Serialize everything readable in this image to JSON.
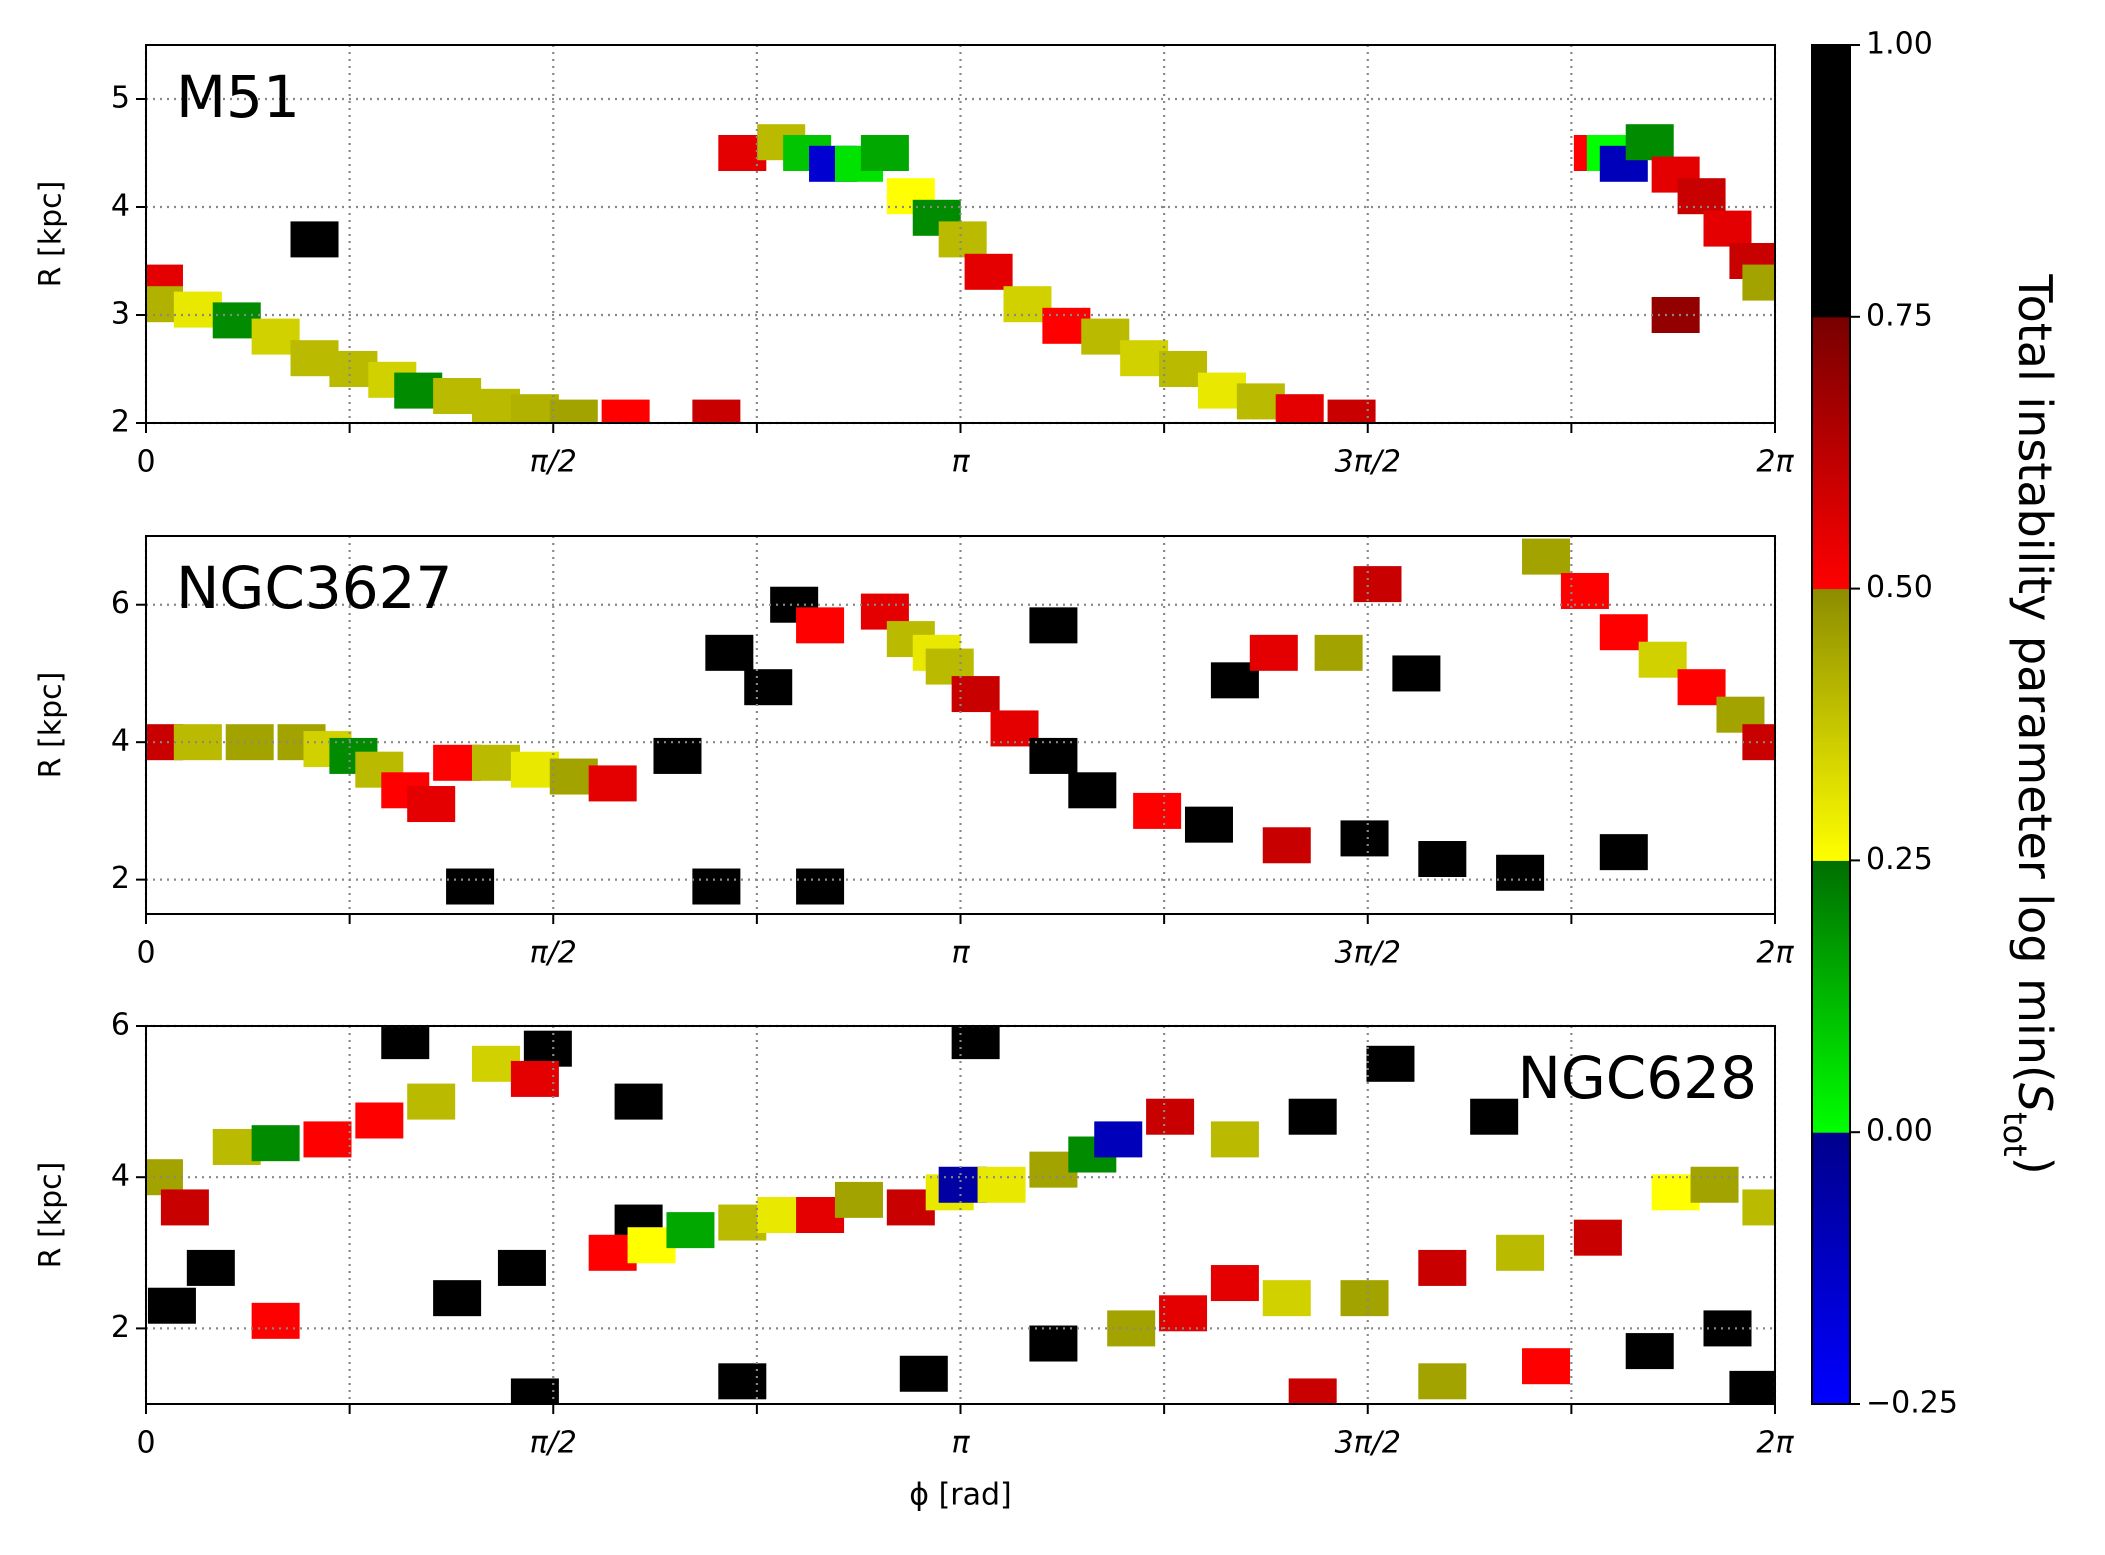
{
  "chart_data": [
    {
      "type": "heatmap",
      "title": "M51",
      "label_corner": "upper left",
      "ylabel": "R [kpc]",
      "xlim": [
        0,
        6.2832
      ],
      "ylim": [
        2,
        5.5
      ],
      "yticks": [
        2,
        3,
        4,
        5
      ],
      "xticks": [
        0,
        {
          "value": 1.5708,
          "label": "π/2"
        },
        {
          "value": 3.1416,
          "label": "π"
        },
        {
          "value": 4.7124,
          "label": "3π/2"
        },
        {
          "value": 6.2832,
          "label": "2π"
        }
      ],
      "xminor": [
        0.7854,
        2.3562,
        3.927,
        5.4978
      ],
      "grid": true,
      "points": {
        "x": [
          0.05,
          0.05,
          0.2,
          0.35,
          0.5,
          0.65,
          0.8,
          0.95,
          1.05,
          1.2,
          1.35,
          1.5,
          1.65,
          1.85,
          2.2,
          2.3,
          2.45,
          2.55,
          2.65,
          2.75,
          2.85,
          2.95,
          3.05,
          3.15,
          3.25,
          3.4,
          3.55,
          3.7,
          3.85,
          4.0,
          4.15,
          4.3,
          4.45,
          4.65,
          5.6,
          5.65,
          5.7,
          5.8,
          5.9,
          6.0,
          6.1,
          6.2,
          6.25,
          5.9,
          0.65
        ],
        "y": [
          3.3,
          3.1,
          3.05,
          2.95,
          2.8,
          2.6,
          2.5,
          2.4,
          2.3,
          2.25,
          2.15,
          2.1,
          2.05,
          2.05,
          2.05,
          4.5,
          4.6,
          4.5,
          4.4,
          4.4,
          4.5,
          4.1,
          3.9,
          3.7,
          3.4,
          3.1,
          2.9,
          2.8,
          2.6,
          2.5,
          2.3,
          2.2,
          2.1,
          2.05,
          4.5,
          4.5,
          4.4,
          4.6,
          4.3,
          4.1,
          3.8,
          3.5,
          3.3,
          3.0,
          3.7
        ],
        "values": [
          0.55,
          0.42,
          0.3,
          0.2,
          0.35,
          0.4,
          0.4,
          0.35,
          0.2,
          0.4,
          0.4,
          0.42,
          0.45,
          0.5,
          0.6,
          0.55,
          0.4,
          0.1,
          -0.15,
          0.05,
          0.15,
          0.25,
          0.2,
          0.4,
          0.55,
          0.35,
          0.5,
          0.4,
          0.35,
          0.4,
          0.3,
          0.4,
          0.55,
          0.6,
          0.5,
          0.0,
          -0.1,
          0.2,
          0.55,
          0.6,
          0.55,
          0.6,
          0.45,
          0.7,
          0.85
        ]
      }
    },
    {
      "type": "heatmap",
      "title": "NGC3627",
      "label_corner": "upper left",
      "ylabel": "R [kpc]",
      "xlim": [
        0,
        6.2832
      ],
      "ylim": [
        1.5,
        7
      ],
      "yticks": [
        2,
        4,
        6
      ],
      "xticks": [
        0,
        {
          "value": 1.5708,
          "label": "π/2"
        },
        {
          "value": 3.1416,
          "label": "π"
        },
        {
          "value": 4.7124,
          "label": "3π/2"
        },
        {
          "value": 6.2832,
          "label": "2π"
        }
      ],
      "xminor": [
        0.7854,
        2.3562,
        3.927,
        5.4978
      ],
      "grid": true,
      "points": {
        "x": [
          2.25,
          2.5,
          2.4,
          3.65,
          4.1,
          4.7,
          5.0,
          5.3,
          5.7,
          4.9,
          4.2,
          3.5,
          2.2,
          2.6,
          1.25,
          2.05,
          0.05,
          0.2,
          0.4,
          0.6,
          0.7,
          0.8,
          0.9,
          1.0,
          1.1,
          1.2,
          1.35,
          1.5,
          1.65,
          1.8,
          2.6,
          2.85,
          2.95,
          3.05,
          3.1,
          3.2,
          3.35,
          3.5,
          3.9,
          4.4,
          4.35,
          4.6,
          4.75,
          5.4,
          5.55,
          5.7,
          5.85,
          6.0,
          6.15,
          6.25
        ],
        "y": [
          5.3,
          6.0,
          4.8,
          3.3,
          2.8,
          2.6,
          2.3,
          2.1,
          2.4,
          5.0,
          4.9,
          5.7,
          1.9,
          1.9,
          1.9,
          3.8,
          4.0,
          4.0,
          4.0,
          4.0,
          3.9,
          3.8,
          3.6,
          3.3,
          3.1,
          3.7,
          3.7,
          3.6,
          3.5,
          3.4,
          5.7,
          5.9,
          5.5,
          5.3,
          5.1,
          4.7,
          4.2,
          3.8,
          3.0,
          2.5,
          5.3,
          5.3,
          6.3,
          6.7,
          6.2,
          5.6,
          5.2,
          4.8,
          4.4,
          4.0
        ],
        "values": [
          0.9,
          0.9,
          0.85,
          0.85,
          0.85,
          0.85,
          0.9,
          0.9,
          0.9,
          0.9,
          0.85,
          0.85,
          0.85,
          0.9,
          0.85,
          0.85,
          0.6,
          0.4,
          0.45,
          0.45,
          0.35,
          0.2,
          0.4,
          0.5,
          0.55,
          0.5,
          0.4,
          0.3,
          0.45,
          0.55,
          0.5,
          0.55,
          0.4,
          0.3,
          0.4,
          0.6,
          0.55,
          0.75,
          0.5,
          0.6,
          0.55,
          0.45,
          0.6,
          0.45,
          0.5,
          0.5,
          0.35,
          0.5,
          0.45,
          0.6
        ]
      }
    },
    {
      "type": "heatmap",
      "title": "NGC628",
      "label_corner": "upper right",
      "ylabel": "R [kpc]",
      "xlabel": "ϕ [rad]",
      "xlim": [
        0,
        6.2832
      ],
      "ylim": [
        1,
        6
      ],
      "yticks": [
        2,
        4,
        6
      ],
      "xticks": [
        0,
        {
          "value": 1.5708,
          "label": "π/2"
        },
        {
          "value": 3.1416,
          "label": "π"
        },
        {
          "value": 4.7124,
          "label": "3π/2"
        },
        {
          "value": 6.2832,
          "label": "2π"
        }
      ],
      "xminor": [
        0.7854,
        2.3562,
        3.927,
        5.4978
      ],
      "grid": true,
      "points": {
        "x": [
          1.55,
          1.9,
          1.9,
          0.1,
          0.25,
          1.2,
          1.45,
          4.8,
          5.2,
          1.5,
          2.3,
          3.0,
          3.5,
          5.8,
          6.1,
          6.2,
          1.0,
          3.2,
          4.5,
          0.05,
          0.15,
          0.35,
          0.5,
          0.7,
          0.9,
          1.1,
          1.35,
          1.5,
          1.8,
          0.5,
          1.95,
          2.1,
          2.3,
          2.45,
          2.6,
          2.75,
          2.95,
          3.1,
          3.15,
          3.3,
          3.5,
          3.65,
          3.75,
          3.95,
          4.2,
          3.8,
          4.0,
          4.2,
          4.4,
          4.7,
          5.0,
          5.3,
          5.6,
          5.9,
          6.05,
          6.25,
          4.5,
          5.0,
          5.4
        ],
        "y": [
          5.7,
          5.0,
          3.4,
          2.3,
          2.8,
          2.4,
          2.8,
          5.5,
          4.8,
          1.1,
          1.3,
          1.4,
          1.8,
          1.7,
          2.0,
          1.2,
          5.8,
          5.8,
          4.8,
          4.0,
          3.6,
          4.4,
          4.45,
          4.5,
          4.75,
          5.0,
          5.5,
          5.3,
          3.0,
          2.1,
          3.1,
          3.3,
          3.4,
          3.5,
          3.5,
          3.7,
          3.6,
          3.8,
          3.9,
          3.9,
          4.1,
          4.3,
          4.5,
          4.8,
          4.5,
          2.0,
          2.2,
          2.6,
          2.4,
          2.4,
          2.8,
          3.0,
          3.2,
          3.8,
          3.9,
          3.6,
          1.1,
          1.3,
          1.5
        ],
        "values": [
          0.9,
          0.9,
          0.85,
          0.9,
          0.9,
          0.9,
          0.85,
          0.9,
          0.9,
          0.9,
          0.9,
          0.9,
          0.9,
          0.9,
          0.9,
          0.9,
          0.9,
          0.9,
          0.8,
          0.45,
          0.6,
          0.4,
          0.2,
          0.5,
          0.5,
          0.4,
          0.35,
          0.55,
          0.5,
          0.5,
          0.25,
          0.15,
          0.4,
          0.3,
          0.55,
          0.45,
          0.6,
          0.3,
          -0.05,
          0.3,
          0.45,
          0.2,
          -0.1,
          0.6,
          0.4,
          0.45,
          0.55,
          0.55,
          0.35,
          0.45,
          0.6,
          0.4,
          0.6,
          0.25,
          0.45,
          0.4,
          0.6,
          0.45,
          0.5
        ]
      }
    }
  ],
  "colorbar": {
    "label": [
      "Total instability parameter log min(",
      "S",
      "tot",
      ")"
    ],
    "lim": [
      -0.25,
      1
    ],
    "ticks": [
      {
        "value": -0.25,
        "label": "−0.25"
      },
      {
        "value": 0,
        "label": "0.00"
      },
      {
        "value": 0.25,
        "label": "0.25"
      },
      {
        "value": 0.5,
        "label": "0.50"
      },
      {
        "value": 0.75,
        "label": "0.75"
      },
      {
        "value": 1,
        "label": "1.00"
      }
    ],
    "colors": [
      [
        "#0000ff",
        "#00008c"
      ],
      [
        "#00ff00",
        "#006e00"
      ],
      [
        "#ffff00",
        "#8c8c00"
      ],
      [
        "#ff0000",
        "#780000"
      ],
      [
        "#000000",
        "#000000"
      ]
    ]
  }
}
